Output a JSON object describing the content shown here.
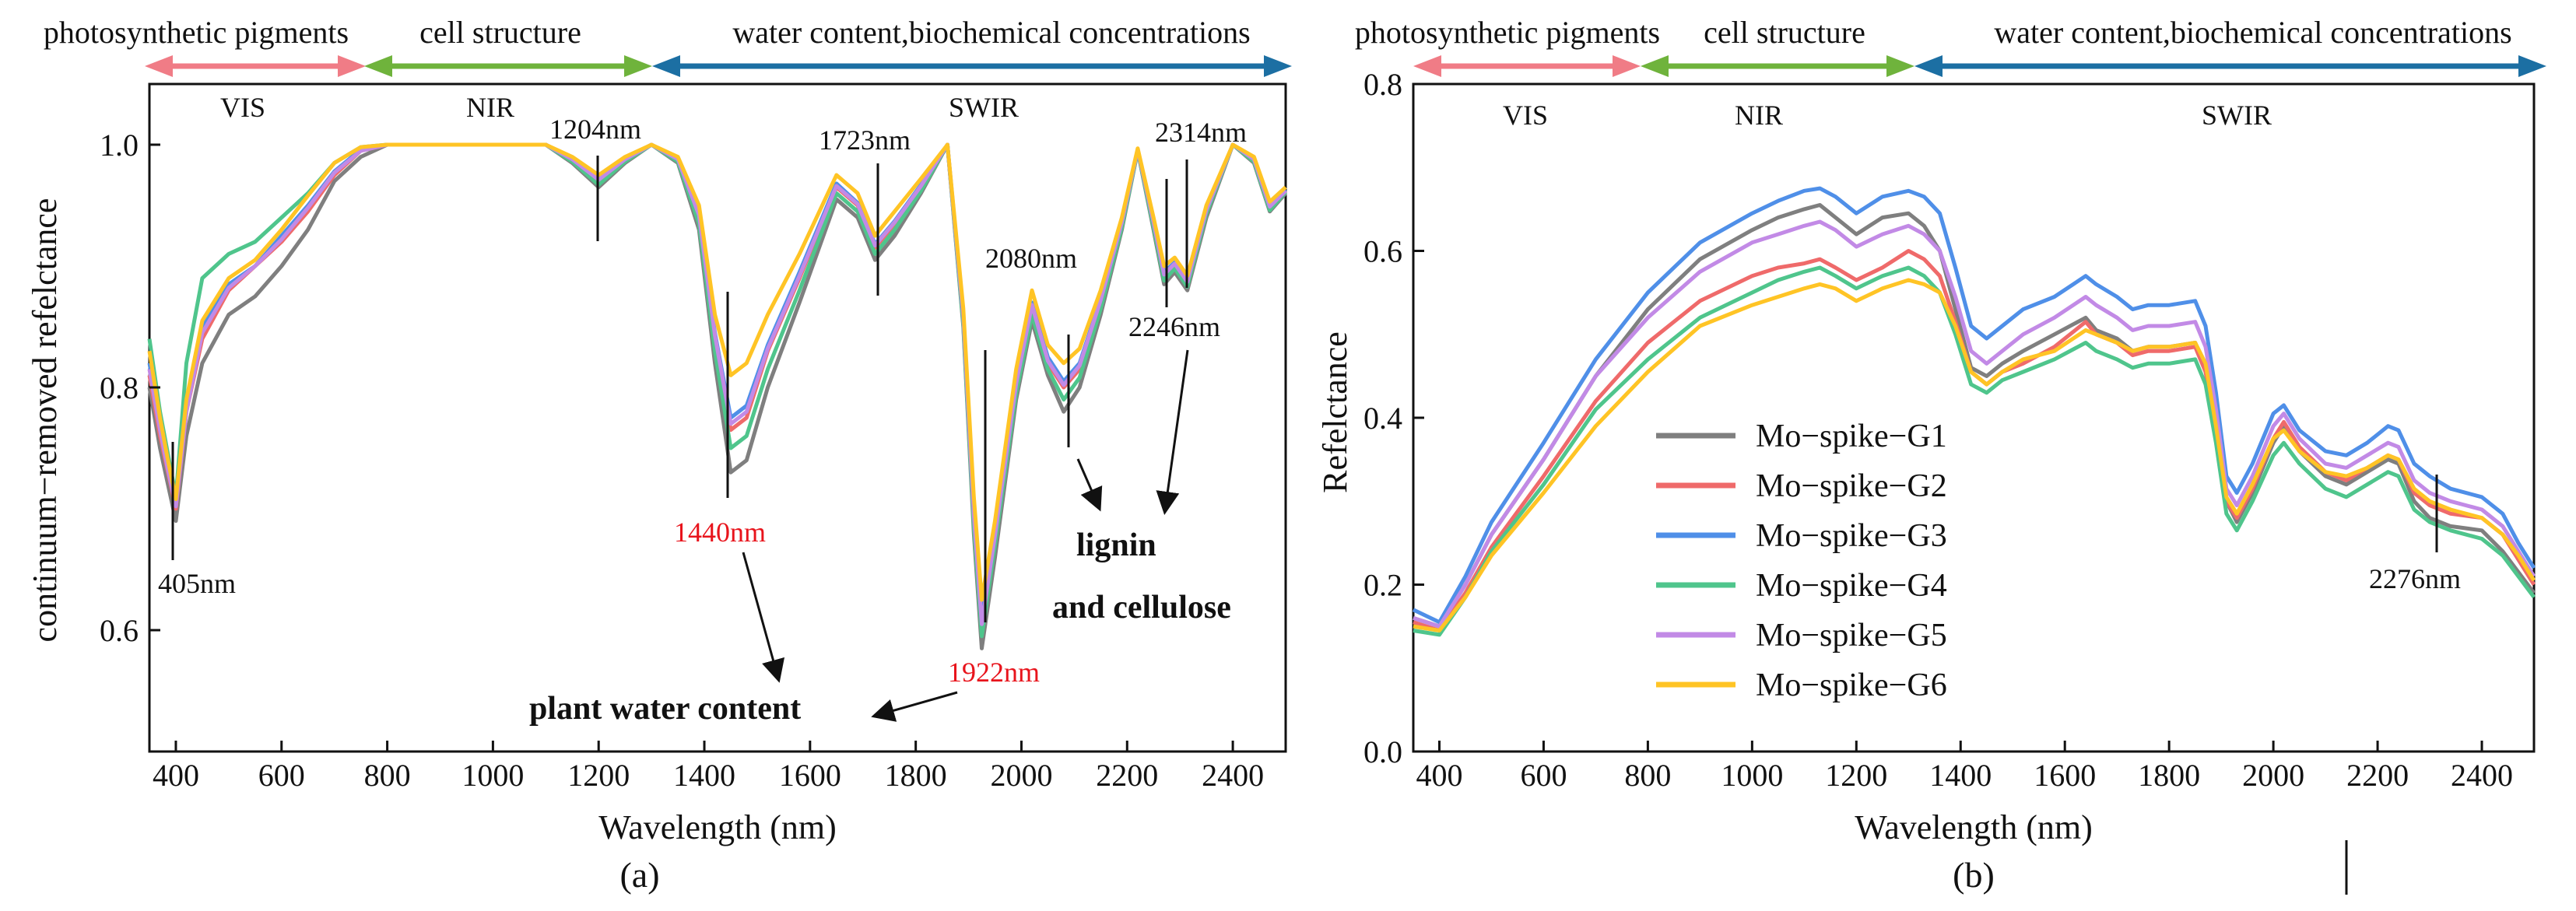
{
  "chart_data": [
    {
      "panel": "(a)",
      "type": "line",
      "title": "",
      "xlabel": "Wavelength (nm)",
      "ylabel": "continuum−removed refelctance",
      "xlim": [
        350,
        2500
      ],
      "ylim": [
        0.5,
        1.05
      ],
      "xticks": [
        400,
        600,
        800,
        1000,
        1200,
        1400,
        1600,
        1800,
        2000,
        2200,
        2400
      ],
      "yticks": [
        0.6,
        0.8,
        1.0
      ],
      "ytick_labels": [
        "0.6",
        "0.8",
        "1.0"
      ],
      "bands": [
        {
          "label": "photosynthetic pigments",
          "color": "#f07c86"
        },
        {
          "label": "cell structure",
          "color": "#6fb33c"
        },
        {
          "label": "water content,biochemical concentrations",
          "color": "#1c6fa3"
        }
      ],
      "regions": [
        "VIS",
        "NIR",
        "SWIR"
      ],
      "annotations": {
        "a405": "405nm",
        "a1204": "1204nm",
        "a1440": "1440nm",
        "a1723": "1723nm",
        "a1922": "1922nm",
        "a2080": "2080nm",
        "a2246": "2246nm",
        "a2314": "2314nm",
        "water": "plant water content",
        "lignin1": "lignin",
        "lignin2": "and cellulose"
      },
      "x": [
        350,
        370,
        385,
        400,
        420,
        450,
        500,
        550,
        600,
        650,
        700,
        750,
        800,
        900,
        1000,
        1100,
        1150,
        1200,
        1250,
        1300,
        1350,
        1390,
        1420,
        1450,
        1480,
        1520,
        1580,
        1650,
        1690,
        1723,
        1760,
        1810,
        1860,
        1890,
        1910,
        1925,
        1950,
        1990,
        2020,
        2050,
        2080,
        2110,
        2150,
        2190,
        2220,
        2250,
        2270,
        2290,
        2314,
        2350,
        2400,
        2440,
        2470,
        2500
      ],
      "series": [
        {
          "name": "Mo−spike−G1",
          "color": "#7f7f7f",
          "values": [
            0.8,
            0.75,
            0.72,
            0.69,
            0.76,
            0.82,
            0.86,
            0.875,
            0.9,
            0.93,
            0.97,
            0.99,
            1.0,
            1.0,
            1.0,
            1.0,
            0.985,
            0.965,
            0.985,
            1.0,
            0.985,
            0.93,
            0.82,
            0.73,
            0.74,
            0.8,
            0.87,
            0.955,
            0.94,
            0.905,
            0.925,
            0.96,
            1.0,
            0.85,
            0.68,
            0.585,
            0.66,
            0.79,
            0.855,
            0.81,
            0.78,
            0.8,
            0.86,
            0.93,
            0.995,
            0.93,
            0.885,
            0.895,
            0.88,
            0.94,
            1.0,
            0.985,
            0.945,
            0.96
          ]
        },
        {
          "name": "Mo−spike−G2",
          "color": "#ef6a6a",
          "values": [
            0.81,
            0.76,
            0.73,
            0.7,
            0.78,
            0.84,
            0.88,
            0.9,
            0.92,
            0.945,
            0.975,
            0.995,
            1.0,
            1.0,
            1.0,
            1.0,
            0.987,
            0.97,
            0.987,
            1.0,
            0.987,
            0.94,
            0.84,
            0.765,
            0.775,
            0.83,
            0.89,
            0.965,
            0.95,
            0.915,
            0.935,
            0.965,
            1.0,
            0.855,
            0.69,
            0.6,
            0.675,
            0.8,
            0.865,
            0.82,
            0.8,
            0.815,
            0.87,
            0.935,
            0.995,
            0.935,
            0.89,
            0.9,
            0.885,
            0.945,
            1.0,
            0.987,
            0.948,
            0.962
          ]
        },
        {
          "name": "Mo−spike−G3",
          "color": "#4f8fe8",
          "values": [
            0.82,
            0.77,
            0.735,
            0.705,
            0.785,
            0.85,
            0.885,
            0.9,
            0.925,
            0.95,
            0.978,
            0.996,
            1.0,
            1.0,
            1.0,
            1.0,
            0.988,
            0.972,
            0.988,
            1.0,
            0.988,
            0.943,
            0.845,
            0.775,
            0.785,
            0.835,
            0.895,
            0.968,
            0.952,
            0.918,
            0.937,
            0.967,
            1.0,
            0.86,
            0.7,
            0.61,
            0.68,
            0.805,
            0.87,
            0.825,
            0.805,
            0.82,
            0.873,
            0.937,
            0.996,
            0.937,
            0.895,
            0.903,
            0.888,
            0.947,
            1.0,
            0.988,
            0.95,
            0.963
          ]
        },
        {
          "name": "Mo−spike−G4",
          "color": "#4fc58c",
          "values": [
            0.84,
            0.78,
            0.745,
            0.71,
            0.82,
            0.89,
            0.91,
            0.92,
            0.94,
            0.96,
            0.985,
            0.998,
            1.0,
            1.0,
            1.0,
            1.0,
            0.986,
            0.967,
            0.986,
            1.0,
            0.986,
            0.935,
            0.83,
            0.75,
            0.76,
            0.815,
            0.88,
            0.96,
            0.945,
            0.91,
            0.93,
            0.962,
            1.0,
            0.852,
            0.685,
            0.595,
            0.67,
            0.795,
            0.86,
            0.815,
            0.79,
            0.808,
            0.865,
            0.932,
            0.995,
            0.932,
            0.888,
            0.898,
            0.883,
            0.943,
            1.0,
            0.986,
            0.946,
            0.961
          ]
        },
        {
          "name": "Mo−spike−G5",
          "color": "#c28ae6",
          "values": [
            0.815,
            0.765,
            0.732,
            0.702,
            0.78,
            0.845,
            0.882,
            0.9,
            0.922,
            0.948,
            0.977,
            0.995,
            1.0,
            1.0,
            1.0,
            1.0,
            0.988,
            0.971,
            0.988,
            1.0,
            0.988,
            0.942,
            0.843,
            0.77,
            0.78,
            0.832,
            0.892,
            0.966,
            0.951,
            0.917,
            0.936,
            0.966,
            1.0,
            0.858,
            0.695,
            0.605,
            0.678,
            0.803,
            0.868,
            0.822,
            0.802,
            0.818,
            0.872,
            0.936,
            0.996,
            0.936,
            0.893,
            0.902,
            0.887,
            0.946,
            1.0,
            0.988,
            0.949,
            0.962
          ]
        },
        {
          "name": "Mo−spike−G6",
          "color": "#ffc425",
          "values": [
            0.83,
            0.775,
            0.74,
            0.708,
            0.79,
            0.855,
            0.89,
            0.905,
            0.93,
            0.958,
            0.985,
            0.998,
            1.0,
            1.0,
            1.0,
            1.0,
            0.99,
            0.975,
            0.99,
            1.0,
            0.99,
            0.95,
            0.86,
            0.81,
            0.82,
            0.86,
            0.91,
            0.975,
            0.96,
            0.925,
            0.945,
            0.972,
            1.0,
            0.865,
            0.71,
            0.625,
            0.69,
            0.815,
            0.88,
            0.835,
            0.82,
            0.832,
            0.88,
            0.94,
            0.997,
            0.94,
            0.9,
            0.907,
            0.892,
            0.95,
            1.0,
            0.99,
            0.953,
            0.965
          ]
        }
      ]
    },
    {
      "panel": "(b)",
      "type": "line",
      "title": "",
      "xlabel": "Wavelength (nm)",
      "ylabel": "Refelctance",
      "xlim": [
        350,
        2500
      ],
      "ylim": [
        0.0,
        0.8
      ],
      "xticks": [
        400,
        600,
        800,
        1000,
        1200,
        1400,
        1600,
        1800,
        2000,
        2200,
        2400
      ],
      "yticks": [
        0.0,
        0.2,
        0.4,
        0.6,
        0.8
      ],
      "ytick_labels": [
        "0.0",
        "0.2",
        "0.4",
        "0.6",
        "0.8"
      ],
      "bands": [
        {
          "label": "photosynthetic pigments",
          "color": "#f07c86"
        },
        {
          "label": "cell structure",
          "color": "#6fb33c"
        },
        {
          "label": "water content,biochemical concentrations",
          "color": "#1c6fa3"
        }
      ],
      "regions": [
        "VIS",
        "NIR",
        "SWIR"
      ],
      "annotations": {
        "a2276": "2276nm"
      },
      "legend_position": "center-left",
      "x": [
        350,
        400,
        450,
        500,
        600,
        700,
        800,
        900,
        1000,
        1050,
        1100,
        1130,
        1160,
        1200,
        1250,
        1300,
        1330,
        1360,
        1390,
        1420,
        1450,
        1480,
        1520,
        1580,
        1640,
        1660,
        1700,
        1730,
        1760,
        1800,
        1850,
        1870,
        1890,
        1910,
        1930,
        1960,
        2000,
        2020,
        2050,
        2100,
        2140,
        2180,
        2220,
        2240,
        2270,
        2300,
        2340,
        2400,
        2440,
        2470,
        2500
      ],
      "series": [
        {
          "name": "Mo−spike−G1",
          "color": "#7f7f7f",
          "values": [
            0.16,
            0.15,
            0.2,
            0.26,
            0.35,
            0.45,
            0.53,
            0.59,
            0.625,
            0.64,
            0.65,
            0.655,
            0.64,
            0.62,
            0.64,
            0.645,
            0.63,
            0.6,
            0.53,
            0.46,
            0.45,
            0.465,
            0.48,
            0.5,
            0.52,
            0.505,
            0.495,
            0.48,
            0.485,
            0.485,
            0.49,
            0.46,
            0.39,
            0.3,
            0.275,
            0.31,
            0.37,
            0.39,
            0.36,
            0.33,
            0.32,
            0.335,
            0.35,
            0.345,
            0.3,
            0.28,
            0.27,
            0.265,
            0.24,
            0.215,
            0.19
          ]
        },
        {
          "name": "Mo−spike−G2",
          "color": "#ef6a6a",
          "values": [
            0.155,
            0.145,
            0.19,
            0.245,
            0.33,
            0.42,
            0.49,
            0.54,
            0.57,
            0.58,
            0.585,
            0.59,
            0.58,
            0.565,
            0.58,
            0.6,
            0.59,
            0.57,
            0.515,
            0.455,
            0.44,
            0.455,
            0.465,
            0.485,
            0.515,
            0.5,
            0.49,
            0.475,
            0.48,
            0.48,
            0.485,
            0.455,
            0.385,
            0.3,
            0.28,
            0.315,
            0.375,
            0.395,
            0.365,
            0.335,
            0.325,
            0.34,
            0.355,
            0.35,
            0.31,
            0.295,
            0.285,
            0.28,
            0.26,
            0.23,
            0.2
          ]
        },
        {
          "name": "Mo−spike−G3",
          "color": "#4f8fe8",
          "values": [
            0.17,
            0.155,
            0.21,
            0.275,
            0.37,
            0.47,
            0.55,
            0.61,
            0.645,
            0.66,
            0.672,
            0.675,
            0.665,
            0.645,
            0.665,
            0.672,
            0.665,
            0.645,
            0.58,
            0.51,
            0.495,
            0.51,
            0.53,
            0.545,
            0.57,
            0.56,
            0.545,
            0.53,
            0.535,
            0.535,
            0.54,
            0.51,
            0.43,
            0.33,
            0.31,
            0.345,
            0.405,
            0.415,
            0.385,
            0.36,
            0.355,
            0.37,
            0.39,
            0.385,
            0.345,
            0.33,
            0.315,
            0.305,
            0.285,
            0.25,
            0.22
          ]
        },
        {
          "name": "Mo−spike−G4",
          "color": "#4fc58c",
          "values": [
            0.145,
            0.14,
            0.185,
            0.24,
            0.32,
            0.41,
            0.47,
            0.52,
            0.55,
            0.565,
            0.575,
            0.58,
            0.57,
            0.555,
            0.57,
            0.58,
            0.57,
            0.55,
            0.5,
            0.44,
            0.43,
            0.445,
            0.455,
            0.47,
            0.49,
            0.48,
            0.47,
            0.46,
            0.465,
            0.465,
            0.47,
            0.44,
            0.37,
            0.285,
            0.265,
            0.3,
            0.355,
            0.37,
            0.345,
            0.315,
            0.305,
            0.32,
            0.335,
            0.33,
            0.29,
            0.275,
            0.265,
            0.255,
            0.235,
            0.21,
            0.185
          ]
        },
        {
          "name": "Mo−spike−G5",
          "color": "#c28ae6",
          "values": [
            0.16,
            0.15,
            0.2,
            0.26,
            0.35,
            0.45,
            0.52,
            0.575,
            0.61,
            0.62,
            0.63,
            0.635,
            0.625,
            0.605,
            0.62,
            0.63,
            0.62,
            0.6,
            0.545,
            0.48,
            0.465,
            0.48,
            0.5,
            0.52,
            0.545,
            0.535,
            0.52,
            0.505,
            0.51,
            0.51,
            0.515,
            0.485,
            0.41,
            0.315,
            0.295,
            0.33,
            0.39,
            0.405,
            0.375,
            0.345,
            0.34,
            0.355,
            0.37,
            0.365,
            0.325,
            0.31,
            0.3,
            0.29,
            0.27,
            0.24,
            0.21
          ]
        },
        {
          "name": "Mo−spike−G6",
          "color": "#ffc425",
          "values": [
            0.15,
            0.145,
            0.185,
            0.235,
            0.31,
            0.39,
            0.455,
            0.51,
            0.535,
            0.545,
            0.555,
            0.56,
            0.555,
            0.54,
            0.555,
            0.565,
            0.56,
            0.55,
            0.51,
            0.455,
            0.44,
            0.455,
            0.47,
            0.48,
            0.505,
            0.5,
            0.49,
            0.48,
            0.485,
            0.485,
            0.49,
            0.465,
            0.39,
            0.305,
            0.285,
            0.32,
            0.375,
            0.385,
            0.36,
            0.335,
            0.33,
            0.34,
            0.355,
            0.35,
            0.315,
            0.3,
            0.29,
            0.28,
            0.26,
            0.235,
            0.205
          ]
        }
      ]
    }
  ]
}
